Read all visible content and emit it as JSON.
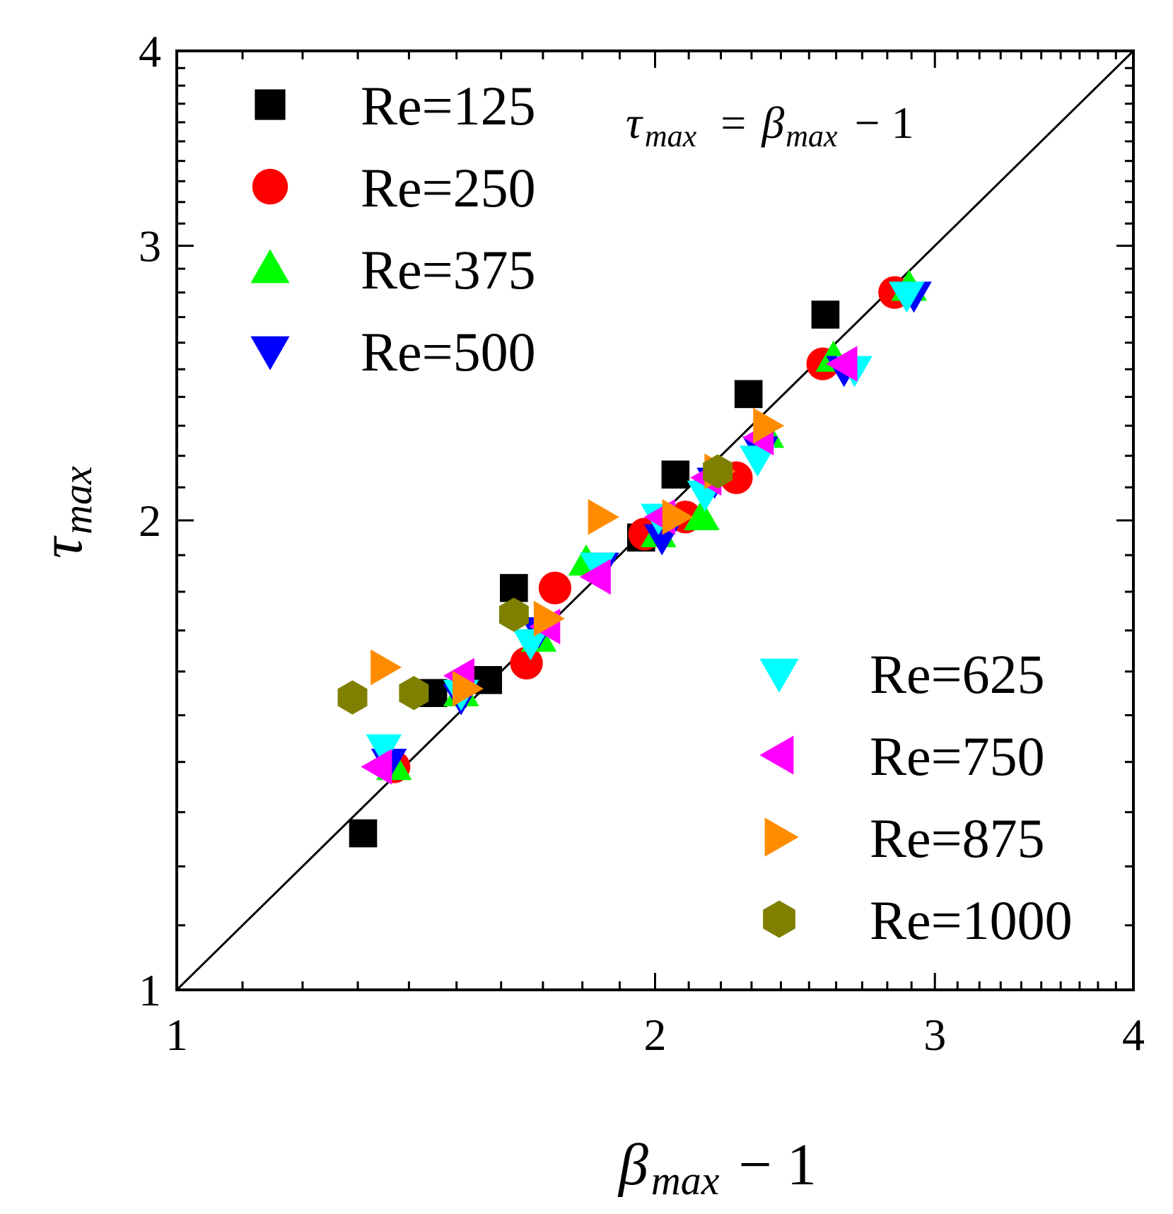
{
  "chart_data": {
    "type": "scatter",
    "x_scale": "log",
    "y_scale": "log",
    "xlim": [
      1,
      4
    ],
    "ylim": [
      1,
      4
    ],
    "x_ticks": [
      "1",
      "2",
      "3",
      "4"
    ],
    "y_ticks": [
      "1",
      "2",
      "3",
      "4"
    ],
    "xlabel": {
      "greek": "β",
      "sub": "max",
      "rest": " − 1"
    },
    "ylabel": {
      "greek": "τ",
      "sub": "max"
    },
    "annotation": {
      "lhs_greek": "τ",
      "lhs_sub": "max",
      "eq": "=",
      "rhs_greek": "β",
      "rhs_sub": "max",
      "rest": "− 1"
    },
    "reference_line": {
      "name": "τmax = βmax − 1",
      "points": [
        [
          1,
          1
        ],
        [
          4,
          4
        ]
      ]
    },
    "series": [
      {
        "name": "Re=125",
        "color": "#000000",
        "marker": "square",
        "points": [
          [
            1.31,
            1.26
          ],
          [
            1.45,
            1.55
          ],
          [
            1.57,
            1.58
          ],
          [
            1.63,
            1.81
          ],
          [
            1.96,
            1.95
          ],
          [
            2.06,
            2.14
          ],
          [
            2.29,
            2.41
          ],
          [
            2.56,
            2.71
          ]
        ]
      },
      {
        "name": "Re=250",
        "color": "#ff0000",
        "marker": "circle",
        "points": [
          [
            1.37,
            1.39
          ],
          [
            1.66,
            1.62
          ],
          [
            1.73,
            1.81
          ],
          [
            1.97,
            1.96
          ],
          [
            2.09,
            2.01
          ],
          [
            2.25,
            2.13
          ],
          [
            2.55,
            2.52
          ],
          [
            2.83,
            2.8
          ]
        ]
      },
      {
        "name": "Re=375",
        "color": "#00ff00",
        "marker": "triangle-up",
        "points": [
          [
            1.37,
            1.39
          ],
          [
            1.51,
            1.55
          ],
          [
            1.69,
            1.68
          ],
          [
            1.81,
            1.88
          ],
          [
            2.01,
            1.96
          ],
          [
            2.14,
            2.01
          ],
          [
            2.35,
            2.27
          ],
          [
            2.59,
            2.54
          ],
          [
            2.89,
            2.82
          ]
        ]
      },
      {
        "name": "Re=500",
        "color": "#0000ff",
        "marker": "triangle-down",
        "points": [
          [
            1.36,
            1.4
          ],
          [
            1.51,
            1.54
          ],
          [
            1.69,
            1.7
          ],
          [
            1.85,
            1.87
          ],
          [
            2.02,
            1.95
          ],
          [
            2.18,
            2.12
          ],
          [
            2.33,
            2.22
          ],
          [
            2.63,
            2.5
          ],
          [
            2.91,
            2.79
          ]
        ]
      },
      {
        "name": "Re=625",
        "color": "#00ffff",
        "marker": "triangle-down",
        "points": [
          [
            1.35,
            1.43
          ],
          [
            1.51,
            1.55
          ],
          [
            1.67,
            1.67
          ],
          [
            1.84,
            1.87
          ],
          [
            2.01,
            2.01
          ],
          [
            2.15,
            2.08
          ],
          [
            2.32,
            2.19
          ],
          [
            2.67,
            2.5
          ],
          [
            2.88,
            2.79
          ]
        ]
      },
      {
        "name": "Re=750",
        "color": "#ff00ff",
        "marker": "triangle-left",
        "points": [
          [
            1.34,
            1.39
          ],
          [
            1.51,
            1.59
          ],
          [
            1.71,
            1.71
          ],
          [
            1.84,
            1.84
          ],
          [
            2.02,
            2.01
          ],
          [
            2.16,
            2.13
          ],
          [
            2.33,
            2.26
          ],
          [
            2.63,
            2.52
          ]
        ]
      },
      {
        "name": "Re=875",
        "color": "#ff8c00",
        "marker": "triangle-right",
        "points": [
          [
            1.35,
            1.61
          ],
          [
            1.52,
            1.56
          ],
          [
            1.71,
            1.73
          ],
          [
            1.85,
            2.01
          ],
          [
            2.06,
            2.01
          ],
          [
            2.19,
            2.15
          ],
          [
            2.35,
            2.3
          ]
        ]
      },
      {
        "name": "Re=1000",
        "color": "#808000",
        "marker": "hexagon",
        "points": [
          [
            1.29,
            1.54
          ],
          [
            1.41,
            1.55
          ],
          [
            1.63,
            1.74
          ],
          [
            2.19,
            2.15
          ]
        ]
      }
    ],
    "legend": [
      {
        "placement": "top-left",
        "entries": [
          "Re=125",
          "Re=250",
          "Re=375",
          "Re=500"
        ]
      },
      {
        "placement": "bottom-right",
        "entries": [
          "Re=625",
          "Re=750",
          "Re=875",
          "Re=1000"
        ]
      }
    ]
  }
}
